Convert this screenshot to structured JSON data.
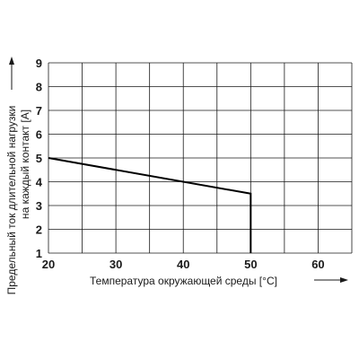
{
  "chart_data": {
    "type": "line",
    "xlabel": "Температура окружающей среды [°C]",
    "ylabel_lines": [
      "Предельный ток длительной нагрузки",
      "на каждый контакт [A]"
    ],
    "xlim": [
      20,
      65
    ],
    "ylim": [
      1,
      9
    ],
    "x_ticks": [
      20,
      30,
      40,
      50,
      60
    ],
    "y_ticks": [
      1,
      2,
      3,
      4,
      5,
      6,
      7,
      8,
      9
    ],
    "x_grid_step": 5,
    "y_grid_step": 1,
    "grid": true,
    "series": [
      {
        "x": [
          20,
          50,
          50
        ],
        "y": [
          5,
          3.5,
          1
        ],
        "color": "#000000"
      }
    ]
  }
}
